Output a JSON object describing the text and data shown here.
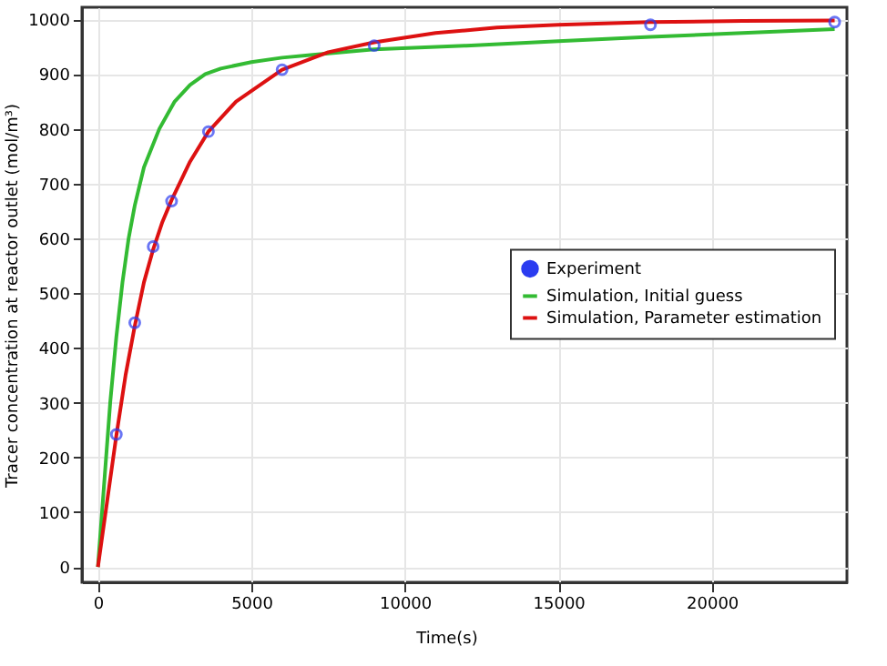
{
  "chart_data": {
    "type": "line",
    "xlabel": "Time(s)",
    "ylabel": "Tracer concentration at reactor outlet (mol/m³)",
    "xlim": [
      -520,
      24400
    ],
    "ylim": [
      -28,
      1022
    ],
    "xticks": [
      0,
      5000,
      10000,
      15000,
      20000
    ],
    "yticks": [
      0,
      100,
      200,
      300,
      400,
      500,
      600,
      700,
      800,
      900,
      1000
    ],
    "grid": true,
    "legend": "right",
    "line_style": "solid",
    "series": [
      {
        "name": "Experiment",
        "type": "scatter",
        "color": "#2b3cf0",
        "x": [
          600,
          1200,
          1800,
          2400,
          3600,
          6000,
          9000,
          18000,
          24000
        ],
        "values": [
          242,
          446,
          585,
          668,
          795,
          908,
          952,
          990,
          995
        ]
      },
      {
        "name": "Simulation, Initial guess",
        "color": "#33bb33",
        "x": [
          0,
          200,
          400,
          600,
          800,
          1000,
          1200,
          1500,
          2000,
          2500,
          3000,
          3500,
          4000,
          5000,
          6000,
          7000,
          8000,
          9000,
          12000,
          15000,
          18000,
          21000,
          24000
        ],
        "values": [
          0,
          150,
          300,
          420,
          520,
          600,
          660,
          730,
          800,
          850,
          880,
          900,
          910,
          922,
          930,
          935,
          940,
          945,
          952,
          960,
          968,
          975,
          982
        ]
      },
      {
        "name": "Simulation, Parameter estimation",
        "color": "#dd1111",
        "x": [
          0,
          300,
          600,
          900,
          1200,
          1500,
          1800,
          2100,
          2400,
          3000,
          3600,
          4500,
          6000,
          7500,
          9000,
          11000,
          13000,
          15000,
          18000,
          21000,
          24000
        ],
        "values": [
          0,
          120,
          240,
          350,
          440,
          520,
          580,
          630,
          670,
          740,
          795,
          850,
          908,
          940,
          958,
          975,
          985,
          990,
          995,
          997,
          998
        ]
      }
    ]
  }
}
